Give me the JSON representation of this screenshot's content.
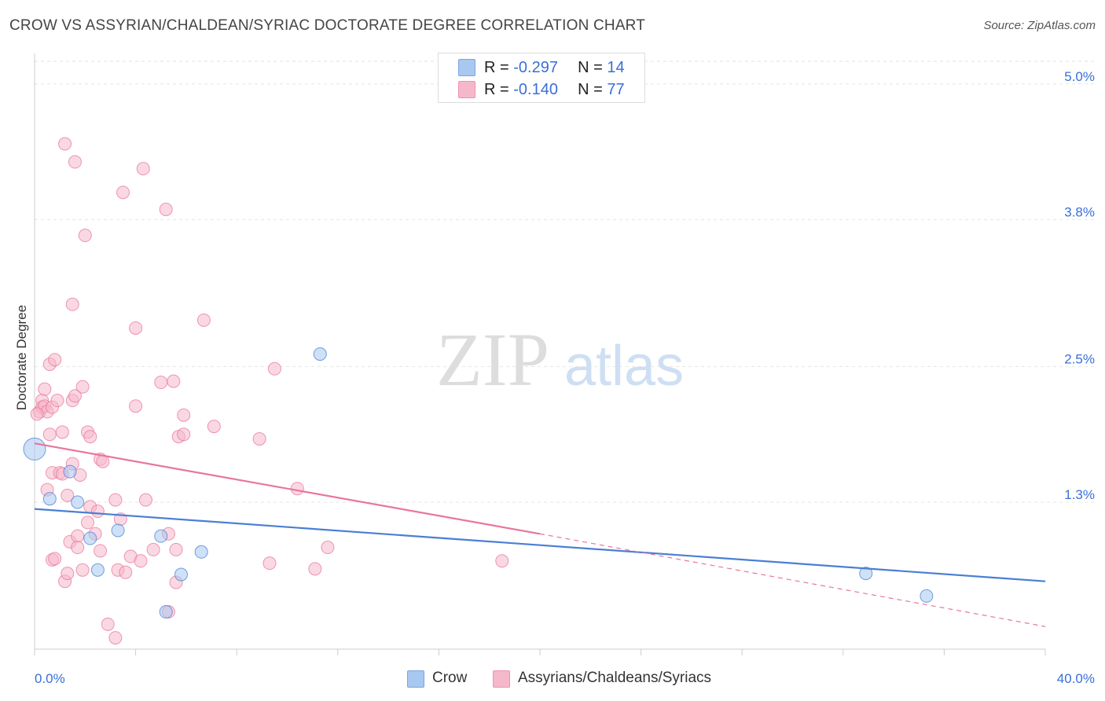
{
  "title": "CROW VS ASSYRIAN/CHALDEAN/SYRIAC DOCTORATE DEGREE CORRELATION CHART",
  "source": "Source: ZipAtlas.com",
  "watermark": {
    "zip": "ZIP",
    "atlas": "atlas"
  },
  "legend": {
    "rows": [
      {
        "r_label": "R =",
        "r_value": "-0.297",
        "n_label": "N =",
        "n_value": "14",
        "color": "#a8c8f0"
      },
      {
        "r_label": "R =",
        "r_value": "-0.140",
        "n_label": "N =",
        "n_value": "77",
        "color": "#f5b8cb"
      }
    ]
  },
  "chart_data": {
    "type": "scatter",
    "title": "CROW VS ASSYRIAN/CHALDEAN/SYRIAC DOCTORATE DEGREE CORRELATION CHART",
    "xlabel": "",
    "ylabel": "Doctorate Degree",
    "xlim": [
      0,
      40
    ],
    "ylim": [
      0,
      5.2
    ],
    "x_tick_labels": [
      "0.0%",
      "40.0%"
    ],
    "y_ticks": [
      1.3,
      2.5,
      3.8,
      5.0
    ],
    "y_tick_labels": [
      "1.3%",
      "2.5%",
      "3.8%",
      "5.0%"
    ],
    "grid": true,
    "legend_position": "top-center",
    "series": [
      {
        "name": "Crow",
        "color": "#4a7fd4",
        "fill": "#a8c8f0",
        "trend": {
          "x": [
            0,
            40
          ],
          "y": [
            1.24,
            0.6
          ],
          "dashed_from": null
        },
        "points": [
          {
            "x": 0.0,
            "y": 1.77,
            "big": true
          },
          {
            "x": 0.6,
            "y": 1.33
          },
          {
            "x": 1.4,
            "y": 1.57
          },
          {
            "x": 1.7,
            "y": 1.3
          },
          {
            "x": 2.2,
            "y": 0.98
          },
          {
            "x": 2.5,
            "y": 0.7
          },
          {
            "x": 3.3,
            "y": 1.05
          },
          {
            "x": 5.0,
            "y": 1.0
          },
          {
            "x": 5.2,
            "y": 0.33
          },
          {
            "x": 5.8,
            "y": 0.66
          },
          {
            "x": 6.6,
            "y": 0.86
          },
          {
            "x": 11.3,
            "y": 2.61
          },
          {
            "x": 32.9,
            "y": 0.67
          },
          {
            "x": 35.3,
            "y": 0.47
          }
        ]
      },
      {
        "name": "Assyrians/Chaldeans/Syriacs",
        "color": "#e8769c",
        "fill": "#f5b8cb",
        "trend": {
          "x": [
            0,
            20
          ],
          "y": [
            1.82,
            1.02
          ],
          "dashed_to": {
            "x": 40,
            "y": 0.2
          }
        },
        "points": [
          {
            "x": 0.2,
            "y": 2.1
          },
          {
            "x": 0.3,
            "y": 2.2
          },
          {
            "x": 0.3,
            "y": 2.14
          },
          {
            "x": 0.4,
            "y": 2.3
          },
          {
            "x": 0.4,
            "y": 2.15
          },
          {
            "x": 0.5,
            "y": 2.1
          },
          {
            "x": 0.5,
            "y": 1.41
          },
          {
            "x": 0.6,
            "y": 1.9
          },
          {
            "x": 0.6,
            "y": 2.52
          },
          {
            "x": 0.7,
            "y": 2.14
          },
          {
            "x": 0.7,
            "y": 1.56
          },
          {
            "x": 0.7,
            "y": 0.79
          },
          {
            "x": 0.8,
            "y": 0.8
          },
          {
            "x": 0.8,
            "y": 2.56
          },
          {
            "x": 0.9,
            "y": 2.2
          },
          {
            "x": 1.0,
            "y": 1.56
          },
          {
            "x": 1.1,
            "y": 1.55
          },
          {
            "x": 1.1,
            "y": 1.92
          },
          {
            "x": 1.2,
            "y": 0.6
          },
          {
            "x": 1.2,
            "y": 4.47
          },
          {
            "x": 1.3,
            "y": 1.36
          },
          {
            "x": 1.3,
            "y": 0.67
          },
          {
            "x": 1.4,
            "y": 0.95
          },
          {
            "x": 1.5,
            "y": 2.2
          },
          {
            "x": 1.5,
            "y": 1.64
          },
          {
            "x": 1.5,
            "y": 3.05
          },
          {
            "x": 1.6,
            "y": 2.24
          },
          {
            "x": 1.6,
            "y": 4.31
          },
          {
            "x": 1.7,
            "y": 1.0
          },
          {
            "x": 1.7,
            "y": 0.9
          },
          {
            "x": 1.8,
            "y": 1.54
          },
          {
            "x": 1.9,
            "y": 2.32
          },
          {
            "x": 1.9,
            "y": 0.7
          },
          {
            "x": 2.0,
            "y": 3.66
          },
          {
            "x": 2.1,
            "y": 1.12
          },
          {
            "x": 2.1,
            "y": 1.92
          },
          {
            "x": 2.2,
            "y": 1.26
          },
          {
            "x": 2.2,
            "y": 1.88
          },
          {
            "x": 2.4,
            "y": 1.02
          },
          {
            "x": 2.5,
            "y": 1.22
          },
          {
            "x": 2.6,
            "y": 0.87
          },
          {
            "x": 2.6,
            "y": 1.68
          },
          {
            "x": 2.7,
            "y": 1.66
          },
          {
            "x": 2.9,
            "y": 0.22
          },
          {
            "x": 3.2,
            "y": 1.32
          },
          {
            "x": 3.2,
            "y": 0.1
          },
          {
            "x": 3.3,
            "y": 0.7
          },
          {
            "x": 3.4,
            "y": 1.15
          },
          {
            "x": 3.5,
            "y": 4.04
          },
          {
            "x": 3.6,
            "y": 0.68
          },
          {
            "x": 3.8,
            "y": 0.82
          },
          {
            "x": 4.0,
            "y": 2.15
          },
          {
            "x": 4.0,
            "y": 2.84
          },
          {
            "x": 4.2,
            "y": 0.78
          },
          {
            "x": 4.3,
            "y": 4.25
          },
          {
            "x": 4.4,
            "y": 1.32
          },
          {
            "x": 4.7,
            "y": 0.88
          },
          {
            "x": 5.0,
            "y": 2.36
          },
          {
            "x": 5.2,
            "y": 3.89
          },
          {
            "x": 5.3,
            "y": 0.33
          },
          {
            "x": 5.3,
            "y": 1.02
          },
          {
            "x": 5.5,
            "y": 2.37
          },
          {
            "x": 5.6,
            "y": 0.59
          },
          {
            "x": 5.6,
            "y": 0.88
          },
          {
            "x": 5.7,
            "y": 1.88
          },
          {
            "x": 5.9,
            "y": 1.9
          },
          {
            "x": 5.9,
            "y": 2.07
          },
          {
            "x": 6.7,
            "y": 2.91
          },
          {
            "x": 7.1,
            "y": 1.97
          },
          {
            "x": 8.9,
            "y": 1.86
          },
          {
            "x": 9.3,
            "y": 0.76
          },
          {
            "x": 9.5,
            "y": 2.48
          },
          {
            "x": 10.4,
            "y": 1.42
          },
          {
            "x": 11.1,
            "y": 0.71
          },
          {
            "x": 11.6,
            "y": 0.9
          },
          {
            "x": 18.5,
            "y": 0.78
          },
          {
            "x": 0.1,
            "y": 2.08
          }
        ]
      }
    ]
  }
}
